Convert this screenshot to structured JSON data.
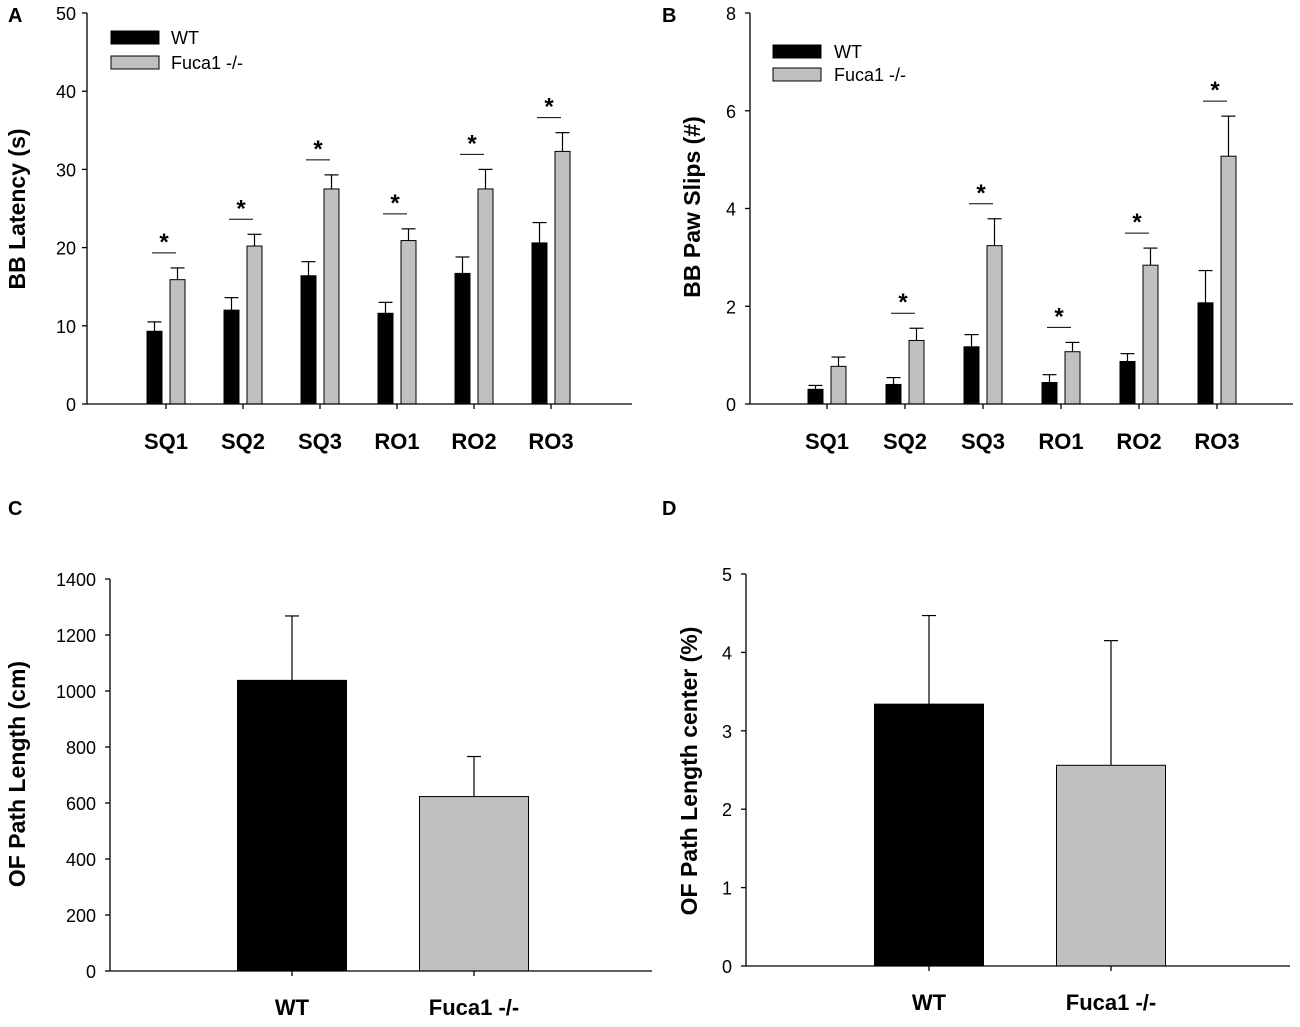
{
  "colors": {
    "wt": "#000000",
    "fuca": "#c0c0c0",
    "axis": "#000000"
  },
  "chart_data": [
    {
      "panel": "A",
      "type": "bar",
      "ylabel": "BB Latency (s)",
      "xlabel": "",
      "ylim": [
        0,
        50
      ],
      "yticks": [
        0,
        10,
        20,
        30,
        40,
        50
      ],
      "categories": [
        "SQ1",
        "SQ2",
        "SQ3",
        "RO1",
        "RO2",
        "RO3"
      ],
      "legend": [
        "WT",
        "Fuca1 -/-"
      ],
      "legend_position": "top-left",
      "series": [
        {
          "name": "WT",
          "values": [
            9.3,
            12.0,
            16.4,
            11.6,
            16.7,
            20.6
          ],
          "errors": [
            1.2,
            1.6,
            1.8,
            1.4,
            2.1,
            2.6
          ]
        },
        {
          "name": "Fuca1 -/-",
          "values": [
            15.9,
            20.2,
            27.5,
            20.9,
            27.5,
            32.3
          ],
          "errors": [
            1.5,
            1.5,
            1.8,
            1.5,
            2.5,
            2.4
          ]
        }
      ],
      "significance": [
        "*",
        "*",
        "*",
        "*",
        "*",
        "*"
      ]
    },
    {
      "panel": "B",
      "type": "bar",
      "ylabel": "BB Paw Slips (#)",
      "xlabel": "",
      "ylim": [
        0,
        8
      ],
      "yticks": [
        0,
        2,
        4,
        6,
        8
      ],
      "categories": [
        "SQ1",
        "SQ2",
        "SQ3",
        "RO1",
        "RO2",
        "RO3"
      ],
      "legend": [
        "WT",
        "Fuca1 -/-"
      ],
      "legend_position": "top-left",
      "series": [
        {
          "name": "WT",
          "values": [
            0.3,
            0.4,
            1.17,
            0.44,
            0.87,
            2.07
          ],
          "errors": [
            0.08,
            0.14,
            0.25,
            0.16,
            0.16,
            0.66
          ]
        },
        {
          "name": "Fuca1 -/-",
          "values": [
            0.77,
            1.3,
            3.24,
            1.07,
            2.84,
            5.07
          ],
          "errors": [
            0.19,
            0.25,
            0.55,
            0.19,
            0.35,
            0.82
          ]
        }
      ],
      "significance": [
        "",
        "*",
        "*",
        "*",
        "*",
        "*"
      ]
    },
    {
      "panel": "C",
      "type": "bar",
      "ylabel": "OF Path Length (cm)",
      "xlabel": "",
      "ylim": [
        0,
        1400
      ],
      "yticks": [
        0,
        200,
        400,
        600,
        800,
        1000,
        1200,
        1400
      ],
      "categories": [
        "WT",
        "Fuca1 -/-"
      ],
      "values": [
        1038,
        623
      ],
      "errors": [
        230,
        143
      ]
    },
    {
      "panel": "D",
      "type": "bar",
      "ylabel": "OF Path Length center (%)",
      "xlabel": "",
      "ylim": [
        0,
        5
      ],
      "yticks": [
        0,
        1,
        2,
        3,
        4,
        5
      ],
      "categories": [
        "WT",
        "Fuca1 -/-"
      ],
      "values": [
        3.34,
        2.56
      ],
      "errors": [
        1.13,
        1.59
      ]
    }
  ]
}
